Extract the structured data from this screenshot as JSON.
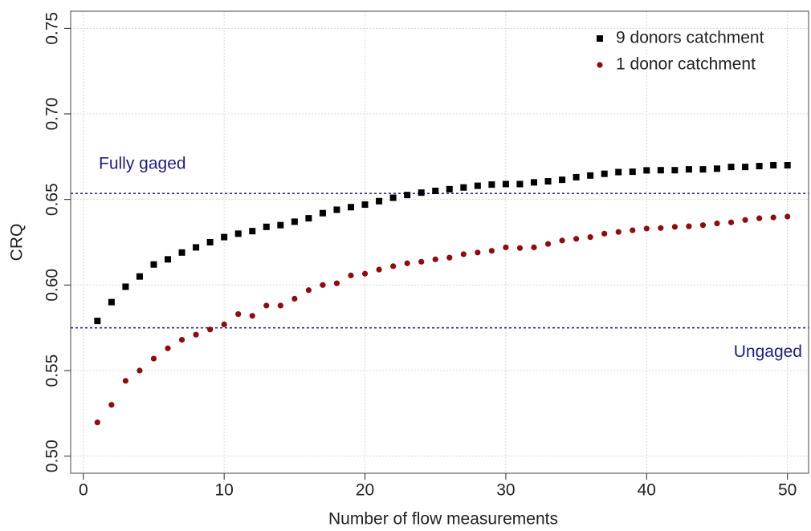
{
  "chart_data": {
    "type": "scatter",
    "xlabel": "Number of flow measurements",
    "ylabel": "CRQ",
    "xlim": [
      -0.9,
      51.5
    ],
    "ylim": [
      0.49,
      0.76
    ],
    "xticks": [
      0,
      10,
      20,
      30,
      40,
      50
    ],
    "yticks": [
      {
        "value": 0.5,
        "label": "0.50"
      },
      0.55,
      {
        "value": 0.6,
        "label": "0.60"
      },
      0.65,
      {
        "value": 0.7,
        "label": "0.70"
      },
      0.75
    ],
    "grid": true,
    "legend": "top-right",
    "x": [
      1,
      2,
      3,
      4,
      5,
      6,
      7,
      8,
      9,
      10,
      11,
      12,
      13,
      14,
      15,
      16,
      17,
      18,
      19,
      20,
      21,
      22,
      23,
      24,
      25,
      26,
      27,
      28,
      29,
      30,
      31,
      32,
      33,
      34,
      35,
      36,
      37,
      38,
      39,
      40,
      41,
      42,
      43,
      44,
      45,
      46,
      47,
      48,
      49,
      50
    ],
    "series": [
      {
        "name": "9 donors catchment",
        "color": "#000000",
        "marker": "square",
        "values": [
          0.579,
          0.59,
          0.599,
          0.605,
          0.612,
          0.615,
          0.619,
          0.622,
          0.625,
          0.628,
          0.63,
          0.6315,
          0.634,
          0.635,
          0.637,
          0.639,
          0.642,
          0.644,
          0.6455,
          0.647,
          0.649,
          0.651,
          0.6526,
          0.654,
          0.655,
          0.656,
          0.657,
          0.658,
          0.6587,
          0.659,
          0.659,
          0.66,
          0.6606,
          0.6615,
          0.663,
          0.664,
          0.665,
          0.666,
          0.6662,
          0.667,
          0.6671,
          0.6671,
          0.6676,
          0.6676,
          0.668,
          0.669,
          0.669,
          0.6695,
          0.67,
          0.67
        ]
      },
      {
        "name": "1 donor catchment",
        "color": "#8b0d0d",
        "marker": "circle",
        "values": [
          0.5197,
          0.53,
          0.544,
          0.55,
          0.557,
          0.563,
          0.568,
          0.571,
          0.574,
          0.577,
          0.583,
          0.582,
          0.588,
          0.588,
          0.592,
          0.597,
          0.6,
          0.601,
          0.6056,
          0.6066,
          0.609,
          0.611,
          0.6127,
          0.6136,
          0.615,
          0.616,
          0.618,
          0.619,
          0.62,
          0.622,
          0.6216,
          0.622,
          0.624,
          0.626,
          0.627,
          0.628,
          0.63,
          0.631,
          0.632,
          0.633,
          0.6333,
          0.634,
          0.6343,
          0.635,
          0.636,
          0.6366,
          0.638,
          0.639,
          0.6395,
          0.64
        ]
      }
    ],
    "annotations": [
      {
        "label": "Fully gaged",
        "value": 0.6535
      },
      {
        "label": "Ungaged",
        "value": 0.575
      }
    ]
  }
}
